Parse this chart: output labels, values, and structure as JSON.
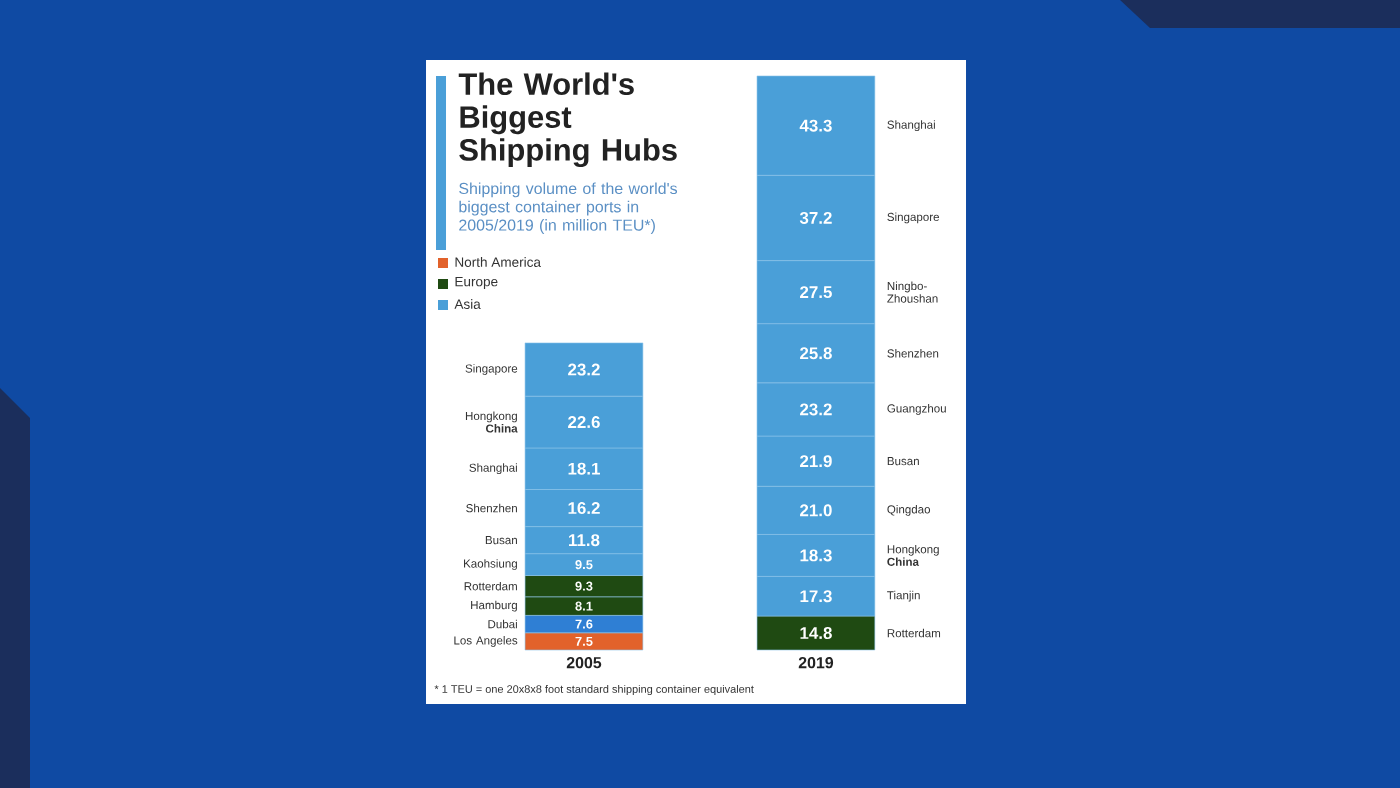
{
  "chart_data": {
    "type": "bar",
    "stacked": true,
    "title": "The World's Biggest Shipping Hubs",
    "subtitle": "Shipping volume of the world's biggest container ports in 2005/2019 (in million TEU*)",
    "annotations": [
      "North America",
      "Europe",
      "Asia",
      "* 1 TEU = one 20x8x8 foot standard shipping container equivalent"
    ],
    "categories": [
      "2005",
      "2019"
    ],
    "series": [
      {
        "name": "Los Angeles",
        "color": "#e2622b",
        "values": [
          7.5,
          null
        ],
        "value_labels": [
          "7.5",
          null
        ]
      },
      {
        "name": "Dubai",
        "color": "#2f7fd4",
        "values": [
          7.6,
          null
        ],
        "value_labels": [
          "7.6",
          null
        ]
      },
      {
        "name": "Hamburg",
        "color": "#1f4a12",
        "values": [
          8.1,
          null
        ],
        "value_labels": [
          "8.1",
          null
        ]
      },
      {
        "name": "Rotterdam",
        "color": "#1f4a12",
        "values": [
          9.3,
          null
        ],
        "value_labels": [
          "9.3",
          null
        ]
      },
      {
        "name": "Kaohsiung",
        "color": "#4a9fd8",
        "values": [
          9.5,
          null
        ],
        "value_labels": [
          "9.5",
          null
        ]
      },
      {
        "name": "Busan",
        "color": "#4a9fd8",
        "values": [
          11.8,
          null
        ],
        "value_labels": [
          "11.8",
          null
        ]
      },
      {
        "name": "Shenzhen",
        "color": "#4a9fd8",
        "values": [
          16.2,
          null
        ],
        "value_labels": [
          "16.2",
          null
        ]
      },
      {
        "name": "Shanghai",
        "color": "#4a9fd8",
        "values": [
          18.1,
          null
        ],
        "value_labels": [
          "18.1",
          null
        ]
      },
      {
        "name": "Hongkong **China**",
        "color": "#4a9fd8",
        "values": [
          22.6,
          null
        ],
        "value_labels": [
          "22.6",
          null
        ]
      },
      {
        "name": "Singapore",
        "color": "#4a9fd8",
        "values": [
          23.2,
          null
        ],
        "value_labels": [
          "23.2",
          null
        ]
      },
      {
        "name": "Rotterdam",
        "color": "#1f4a12",
        "values": [
          null,
          14.8
        ],
        "value_labels": [
          null,
          "14.8"
        ]
      },
      {
        "name": "Tianjin",
        "color": "#4a9fd8",
        "values": [
          null,
          17.3
        ],
        "value_labels": [
          null,
          "17.3"
        ]
      },
      {
        "name": "Hongkong **China**",
        "color": "#4a9fd8",
        "values": [
          null,
          18.3
        ],
        "value_labels": [
          null,
          "18.3"
        ]
      },
      {
        "name": "Qingdao",
        "color": "#4a9fd8",
        "values": [
          null,
          21.0
        ],
        "value_labels": [
          null,
          "21.0"
        ]
      },
      {
        "name": "Busan",
        "color": "#4a9fd8",
        "values": [
          null,
          21.9
        ],
        "value_labels": [
          null,
          "21.9"
        ]
      },
      {
        "name": "Guangzhou",
        "color": "#4a9fd8",
        "values": [
          null,
          23.2
        ],
        "value_labels": [
          null,
          "23.2"
        ]
      },
      {
        "name": "Shenzhen",
        "color": "#4a9fd8",
        "values": [
          null,
          25.8
        ],
        "value_labels": [
          null,
          "25.8"
        ]
      },
      {
        "name": "Ningbo-Zhoushan",
        "color": "#4a9fd8",
        "values": [
          null,
          27.5
        ],
        "value_labels": [
          null,
          "27.5"
        ]
      },
      {
        "name": "Singapore",
        "color": "#4a9fd8",
        "values": [
          null,
          37.2
        ],
        "value_labels": [
          null,
          "37.2"
        ]
      },
      {
        "name": "Shanghai",
        "color": "#4a9fd8",
        "values": [
          null,
          43.3
        ],
        "value_labels": [
          null,
          "43.3"
        ]
      }
    ]
  }
}
